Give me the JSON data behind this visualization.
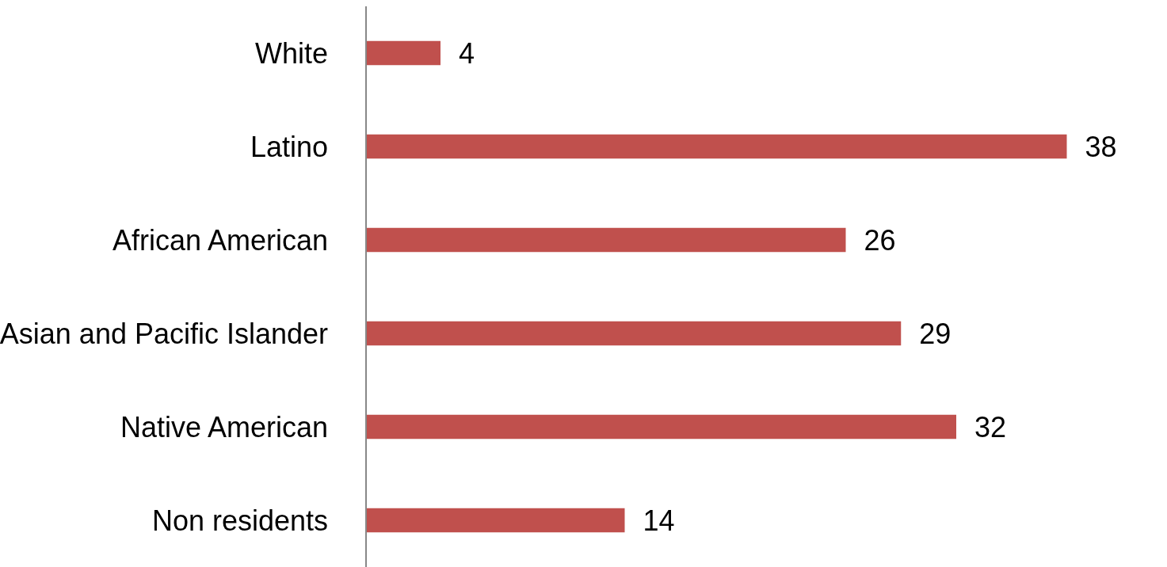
{
  "chart_data": {
    "type": "bar",
    "orientation": "horizontal",
    "categories": [
      "White",
      "Latino",
      "African American",
      "Asian and Pacific Islander",
      "Native American",
      "Non residents"
    ],
    "values": [
      4,
      38,
      26,
      29,
      32,
      14
    ],
    "color": "#c0504d",
    "data_labels": true
  }
}
